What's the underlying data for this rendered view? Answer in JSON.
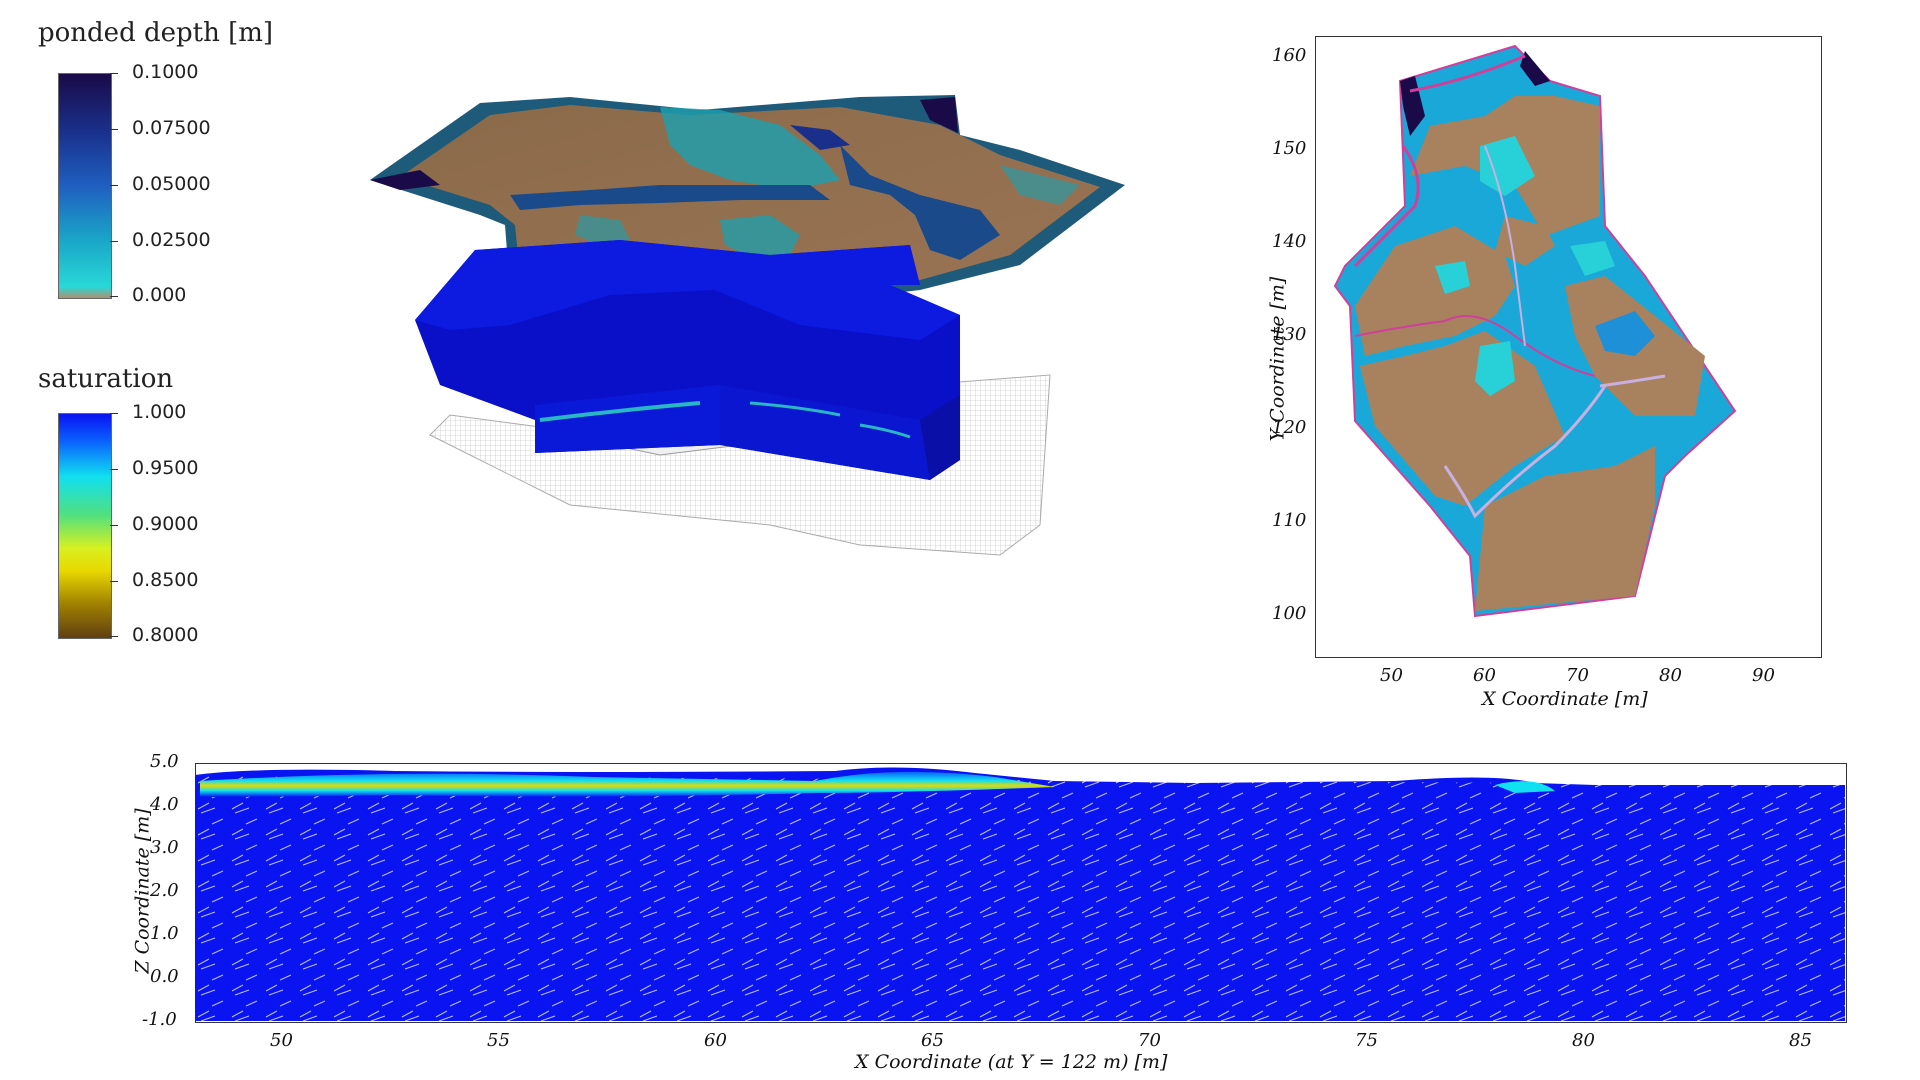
{
  "colorbars": {
    "ponded": {
      "title": "ponded depth [m]",
      "ticks": [
        "0.1000",
        "0.07500",
        "0.05000",
        "0.02500",
        "0.000"
      ]
    },
    "saturation": {
      "title": "saturation",
      "ticks": [
        "1.000",
        "0.9500",
        "0.9000",
        "0.8500",
        "0.8000"
      ]
    }
  },
  "map_plot": {
    "xlabel": "X Coordinate [m]",
    "ylabel": "Y Coordinate [m]",
    "xticks": [
      "50",
      "60",
      "70",
      "80",
      "90"
    ],
    "yticks": [
      "160",
      "150",
      "140",
      "130",
      "120",
      "110",
      "100"
    ]
  },
  "section_plot": {
    "xlabel": "X Coordinate (at Y = 122 m) [m]",
    "ylabel": "Z Coordinate [m]",
    "xticks": [
      "50",
      "55",
      "60",
      "65",
      "70",
      "75",
      "80",
      "85"
    ],
    "yticks": [
      "5.0",
      "4.0",
      "3.0",
      "2.0",
      "1.0",
      "0.0",
      "-1.0"
    ]
  },
  "colors": {
    "soil": "#a8825f",
    "ponded_max": "#1a0a4a",
    "ponded_mid": "#1f5fc0",
    "ponded_low": "#1ec8d0",
    "saturation_full": "#0a14f0",
    "channel": "#d0409a"
  }
}
